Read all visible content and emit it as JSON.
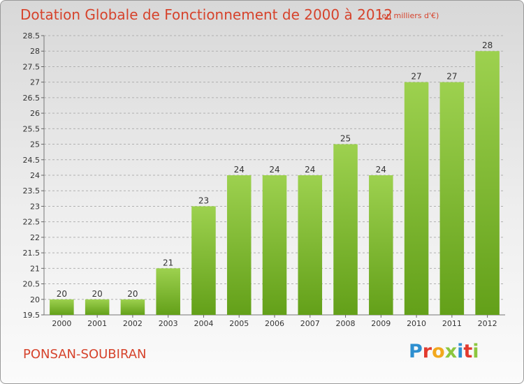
{
  "header": {
    "title": "Dotation Globale de Fonctionnement de 2000 à 2012",
    "unit_note": "(en milliers d'€)"
  },
  "commune": "PONSAN-SOUBIRAN",
  "logo": {
    "text": "Proxiti",
    "letters": [
      {
        "ch": "P",
        "color": "#2e8fd0"
      },
      {
        "ch": "r",
        "color": "#e23a2e"
      },
      {
        "ch": "o",
        "color": "#f2a81d"
      },
      {
        "ch": "x",
        "color": "#8cc63f"
      },
      {
        "ch": "i",
        "color": "#2e8fd0"
      },
      {
        "ch": "t",
        "color": "#e23a2e"
      },
      {
        "ch": "i",
        "color": "#8cc63f"
      }
    ]
  },
  "colors": {
    "accent": "#d6432c",
    "bar_light": "#9dd14f",
    "bar_dark": "#63a019",
    "grid": "#b0b0b0",
    "axis_text": "#333333"
  },
  "chart_data": {
    "type": "bar",
    "title": "Dotation Globale de Fonctionnement de 2000 à 2012",
    "subtitle": "(en milliers d'€)",
    "xlabel": "",
    "ylabel": "",
    "categories": [
      "2000",
      "2001",
      "2002",
      "2003",
      "2004",
      "2005",
      "2006",
      "2007",
      "2008",
      "2009",
      "2010",
      "2011",
      "2012"
    ],
    "values": [
      20,
      20,
      20,
      21,
      23,
      24,
      24,
      24,
      25,
      24,
      27,
      27,
      28
    ],
    "data_labels": [
      "20",
      "20",
      "20",
      "21",
      "23",
      "24",
      "24",
      "24",
      "25",
      "24",
      "27",
      "27",
      "28"
    ],
    "ylim": [
      19.5,
      28.5
    ],
    "yticks": [
      "19.5",
      "20",
      "20.5",
      "21",
      "21.5",
      "22",
      "22.5",
      "23",
      "23.5",
      "24",
      "24.5",
      "25",
      "25.5",
      "26",
      "26.5",
      "27",
      "27.5",
      "28",
      "28.5"
    ],
    "grid": true,
    "legend": "none"
  }
}
